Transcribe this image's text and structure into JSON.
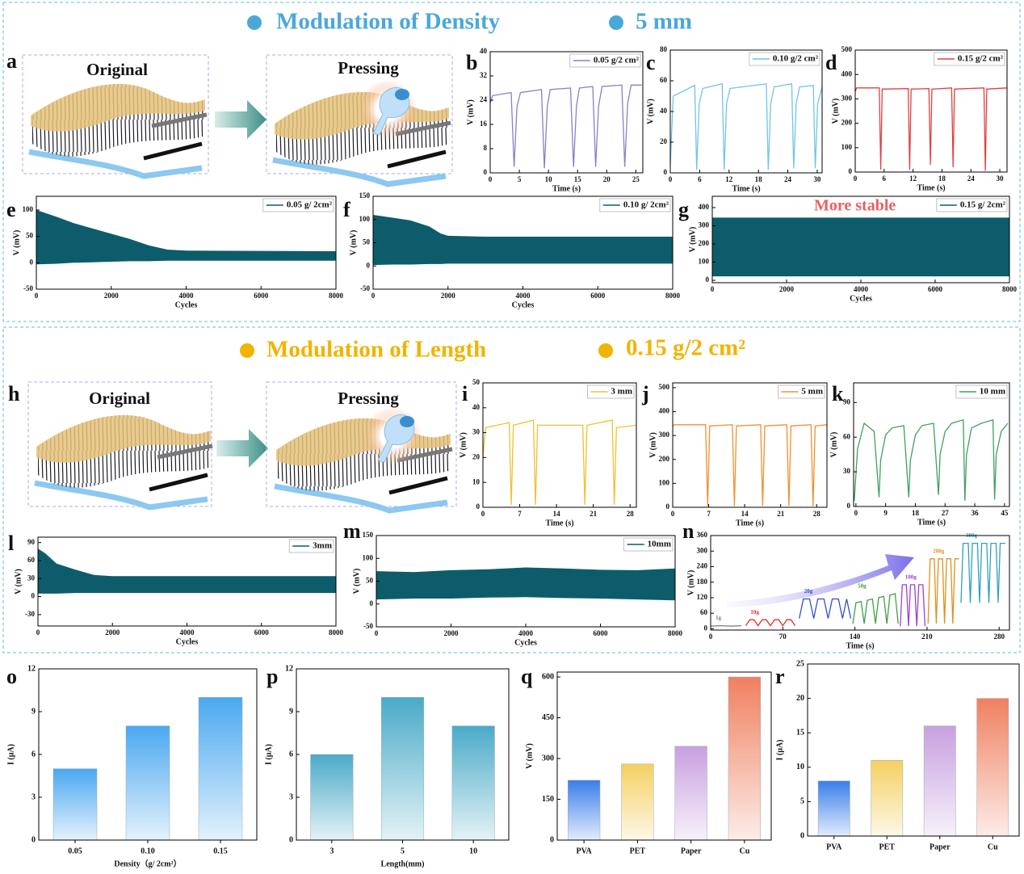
{
  "sections": [
    {
      "title": "Modulation of Density",
      "condition": "5 mm"
    },
    {
      "title": "Modulation of Length",
      "condition": "0.15 g/2 cm²"
    }
  ],
  "illustrations": [
    {
      "left": "Original",
      "right": "Pressing"
    },
    {
      "left": "Original",
      "right": "Pressing"
    }
  ],
  "panel_labels": [
    "a",
    "b",
    "c",
    "d",
    "e",
    "f",
    "g",
    "h",
    "i",
    "j",
    "k",
    "l",
    "m",
    "n",
    "o",
    "p",
    "q",
    "r"
  ],
  "chart_data": [
    {
      "type": "line",
      "xlabel": "Time (s)",
      "ylabel": "V (mV)",
      "xlim": [
        0,
        26.2
      ],
      "ylim": [
        0,
        40
      ],
      "xticks": [
        0,
        5,
        10,
        15,
        20,
        25
      ],
      "yticks": [
        0,
        8,
        16,
        24,
        32,
        40
      ],
      "legend": "upper right",
      "x": [
        0,
        0.4,
        3.6,
        4.1,
        4.6,
        5.2,
        8.8,
        9.3,
        9.8,
        10.3,
        13.8,
        14.3,
        14.8,
        15.3,
        17.6,
        18.1,
        18.6,
        19.2,
        22.6,
        23.1,
        23.6,
        24.2,
        26
      ],
      "series": [
        {
          "name": "0.05 g/2 cm²",
          "color": "#8a7fc8",
          "values": [
            23,
            25.5,
            26.5,
            2,
            22,
            26.5,
            27.5,
            1.5,
            22,
            27.5,
            28,
            2,
            22,
            28,
            28.5,
            2,
            22,
            28.5,
            29,
            2,
            23,
            29,
            29
          ]
        }
      ]
    },
    {
      "type": "line",
      "xlabel": "Time (s)",
      "ylabel": "V (mV)",
      "xlim": [
        0,
        31
      ],
      "ylim": [
        0,
        80
      ],
      "xticks": [
        0,
        6,
        12,
        18,
        24,
        30
      ],
      "yticks": [
        0,
        20,
        40,
        60,
        80
      ],
      "legend": "upper right",
      "x": [
        0,
        0.6,
        5,
        5.4,
        5.9,
        6.6,
        10.6,
        11,
        11.5,
        12.2,
        19.6,
        20,
        20.5,
        21.2,
        24.8,
        25.2,
        25.7,
        26.4,
        29.2,
        29.6,
        30.1,
        31
      ],
      "series": [
        {
          "name": "0.10 g/2 cm²",
          "color": "#72c4e6",
          "values": [
            5,
            50,
            57,
            2,
            45,
            55,
            58,
            2,
            45,
            55,
            58,
            2,
            45,
            56,
            58,
            3,
            45,
            56,
            57,
            3,
            45,
            56
          ]
        }
      ]
    },
    {
      "type": "line",
      "xlabel": "Time (s)",
      "ylabel": "V (mV)",
      "xlim": [
        0,
        31.5
      ],
      "ylim": [
        0,
        500
      ],
      "xticks": [
        0,
        6,
        12,
        18,
        24,
        30
      ],
      "yticks": [
        0,
        100,
        200,
        300,
        400,
        500
      ],
      "legend": "upper right",
      "x": [
        0,
        0.3,
        5,
        5.3,
        5.6,
        11,
        11.3,
        11.6,
        15.3,
        15.6,
        15.9,
        20,
        20.3,
        20.6,
        26.7,
        27,
        27.3,
        31.5
      ],
      "series": [
        {
          "name": "0.15 g/2 cm²",
          "color": "#e04040",
          "values": [
            330,
            345,
            345,
            10,
            340,
            342,
            10,
            340,
            342,
            30,
            340,
            345,
            20,
            340,
            345,
            5,
            340,
            345
          ]
        }
      ]
    },
    {
      "type": "band",
      "xlabel": "Cycles",
      "ylabel": "V (mV)",
      "xlim": [
        0,
        8000
      ],
      "ylim": [
        -50,
        126
      ],
      "xticks": [
        0,
        2000,
        4000,
        6000,
        8000
      ],
      "yticks": [
        -50,
        0,
        50,
        100
      ],
      "legend": "upper right",
      "x": [
        0,
        500,
        1000,
        1500,
        2000,
        2500,
        3000,
        3500,
        4000,
        8000
      ],
      "series": [
        {
          "name": "0.05 g/ 2cm²",
          "color": "#0d5c6b",
          "upper": [
            100,
            88,
            75,
            65,
            55,
            45,
            33,
            25,
            23,
            22
          ],
          "lower": [
            -3,
            -2,
            0,
            1,
            2,
            3,
            3,
            4,
            4,
            4
          ]
        }
      ]
    },
    {
      "type": "band",
      "xlabel": "Cycles",
      "ylabel": "V (mV)",
      "xlim": [
        0,
        8000
      ],
      "ylim": [
        -50,
        150
      ],
      "xticks": [
        0,
        2000,
        4000,
        6000,
        8000
      ],
      "yticks": [
        -50,
        0,
        50,
        100,
        150
      ],
      "legend": "upper right",
      "x": [
        0,
        500,
        1000,
        1500,
        1800,
        2000,
        3000,
        8000
      ],
      "series": [
        {
          "name": "0.10 g/ 2cm²",
          "color": "#0d5c6b",
          "upper": [
            110,
            104,
            98,
            85,
            70,
            65,
            63,
            63
          ],
          "lower": [
            2,
            3,
            3,
            4,
            4,
            5,
            5,
            5
          ]
        }
      ]
    },
    {
      "type": "band",
      "xlabel": "Cycles",
      "ylabel": "V (mV)",
      "xlim": [
        0,
        8000
      ],
      "ylim": [
        -13,
        462
      ],
      "xticks": [
        0,
        2000,
        4000,
        6000,
        8000
      ],
      "yticks": [
        0,
        100,
        200,
        300,
        400
      ],
      "legend": "upper right",
      "annotation": "More stable",
      "x": [
        0,
        8000
      ],
      "series": [
        {
          "name": "0.15 g/ 2cm²",
          "color": "#0d5c6b",
          "upper": [
            345,
            345
          ],
          "lower": [
            22,
            22
          ]
        }
      ]
    },
    {
      "type": "line",
      "xlabel": "Time (s)",
      "ylabel": "V (mV)",
      "xlim": [
        0,
        29.2
      ],
      "ylim": [
        0,
        50
      ],
      "xticks": [
        0,
        7,
        14,
        21,
        28
      ],
      "yticks": [
        0,
        10,
        20,
        30,
        40,
        50
      ],
      "legend": "upper right",
      "x": [
        0,
        0.5,
        5,
        5.4,
        5.8,
        9.6,
        10,
        10.4,
        19,
        19.4,
        19.8,
        24.6,
        25,
        25.4,
        29.2
      ],
      "series": [
        {
          "name": "3 mm",
          "color": "#f0c030",
          "values": [
            20,
            32,
            34,
            1,
            33,
            35,
            1,
            33,
            33,
            1,
            33,
            35,
            1,
            32,
            33
          ]
        }
      ]
    },
    {
      "type": "line",
      "xlabel": "Time (s)",
      "ylabel": "V (mV)",
      "xlim": [
        0,
        30
      ],
      "ylim": [
        0,
        520
      ],
      "xticks": [
        0,
        7,
        14,
        21,
        28
      ],
      "yticks": [
        0,
        100,
        200,
        300,
        400,
        500
      ],
      "legend": "upper right",
      "x": [
        0,
        0.3,
        6.4,
        6.8,
        7.2,
        11.6,
        12,
        12.4,
        17.1,
        17.5,
        17.9,
        22.2,
        22.6,
        23,
        26.9,
        27.3,
        27.7,
        30
      ],
      "series": [
        {
          "name": "5 mm",
          "color": "#f09030",
          "values": [
            340,
            345,
            345,
            5,
            340,
            345,
            5,
            340,
            345,
            5,
            340,
            345,
            5,
            340,
            345,
            5,
            340,
            345
          ]
        }
      ]
    },
    {
      "type": "line",
      "xlabel": "Time (s)",
      "ylabel": "V (mV)",
      "xlim": [
        -0.7,
        46.5
      ],
      "ylim": [
        0,
        107
      ],
      "xticks": [
        0,
        9,
        18,
        27,
        36,
        45
      ],
      "yticks": [
        0,
        30,
        60,
        90
      ],
      "legend": "upper right",
      "x": [
        -0.5,
        0.5,
        2.5,
        5.5,
        7,
        7.5,
        9,
        11,
        14.5,
        16,
        16.5,
        18,
        20,
        23.5,
        25,
        25.5,
        27,
        29,
        32.5,
        33,
        33.5,
        35,
        38,
        41.5,
        42,
        42.5,
        44,
        46
      ],
      "series": [
        {
          "name": "10 mm",
          "color": "#40a060",
          "values": [
            5,
            50,
            72,
            65,
            8,
            40,
            62,
            68,
            70,
            8,
            40,
            62,
            70,
            72,
            10,
            45,
            65,
            72,
            75,
            5,
            45,
            68,
            72,
            75,
            6,
            45,
            65,
            72
          ]
        }
      ]
    },
    {
      "type": "band",
      "xlabel": "Cycles",
      "ylabel": "V (mV)",
      "xlim": [
        0,
        8000
      ],
      "ylim": [
        -49,
        99
      ],
      "xticks": [
        0,
        2000,
        4000,
        6000,
        8000
      ],
      "yticks": [
        -30,
        0,
        30,
        60,
        90
      ],
      "legend": "upper right",
      "x": [
        0,
        200,
        500,
        1000,
        1500,
        2000,
        8000
      ],
      "series": [
        {
          "name": "3mm",
          "color": "#0d5c6b",
          "upper": [
            80,
            72,
            55,
            45,
            36,
            34,
            34
          ],
          "lower": [
            5,
            5,
            5,
            6,
            6,
            6,
            6
          ]
        }
      ]
    },
    {
      "type": "band",
      "xlabel": "Cycles",
      "ylabel": "V (mV)",
      "xlim": [
        0,
        8000
      ],
      "ylim": [
        -50,
        150
      ],
      "xticks": [
        0,
        2000,
        4000,
        6000,
        8000
      ],
      "yticks": [
        -50,
        0,
        50,
        100,
        150
      ],
      "legend": "upper right",
      "x": [
        0,
        1000,
        2000,
        3000,
        4000,
        5000,
        6000,
        7000,
        8000
      ],
      "series": [
        {
          "name": "10mm",
          "color": "#0d5c6b",
          "upper": [
            72,
            70,
            74,
            76,
            80,
            78,
            75,
            74,
            78
          ],
          "lower": [
            10,
            12,
            12,
            14,
            15,
            13,
            12,
            10,
            8
          ]
        }
      ]
    },
    {
      "type": "line",
      "xlabel": "Time (s)",
      "ylabel": "V (mV)",
      "xlim": [
        0,
        290
      ],
      "ylim": [
        -5,
        360
      ],
      "xticks": [
        0,
        70,
        140,
        210,
        280
      ],
      "yticks": [
        0,
        60,
        120,
        180,
        240,
        300,
        360
      ],
      "series": [
        {
          "name": "1g",
          "color": "#808080",
          "x": [
            0,
            10,
            20,
            30
          ],
          "values": [
            10,
            12,
            10,
            12
          ]
        },
        {
          "name": "10g",
          "color": "#e03030",
          "x": [
            34,
            38,
            42,
            46,
            50,
            54,
            58,
            62,
            66,
            70,
            74,
            78,
            82
          ],
          "values": [
            12,
            35,
            35,
            12,
            35,
            35,
            12,
            35,
            35,
            12,
            35,
            35,
            12
          ]
        },
        {
          "name": "20g",
          "color": "#3050d0",
          "x": [
            86,
            90,
            96,
            100,
            104,
            110,
            114,
            118,
            124,
            128,
            132,
            136
          ],
          "values": [
            40,
            115,
            115,
            40,
            115,
            115,
            40,
            115,
            115,
            40,
            115,
            40
          ]
        },
        {
          "name": "50g",
          "color": "#40a040",
          "x": [
            138,
            141,
            146,
            149,
            152,
            157,
            160,
            163,
            168,
            171,
            174,
            179,
            182
          ],
          "values": [
            20,
            100,
            105,
            20,
            110,
            115,
            20,
            120,
            125,
            20,
            130,
            135,
            20
          ]
        },
        {
          "name": "100g",
          "color": "#a040d0",
          "x": [
            184,
            186,
            190,
            192,
            194,
            198,
            200,
            202,
            206,
            208
          ],
          "values": [
            10,
            170,
            170,
            10,
            170,
            170,
            10,
            170,
            170,
            10
          ]
        },
        {
          "name": "200g",
          "color": "#e09020",
          "x": [
            211,
            213,
            217,
            219,
            221,
            225,
            227,
            229,
            233,
            235,
            237,
            241
          ],
          "values": [
            20,
            270,
            270,
            20,
            270,
            270,
            20,
            270,
            270,
            20,
            270,
            270
          ]
        },
        {
          "name": "300g",
          "color": "#30a0c0",
          "x": [
            243,
            245,
            250,
            252,
            254,
            259,
            261,
            263,
            268,
            270,
            272,
            277,
            279,
            281,
            286
          ],
          "values": [
            100,
            330,
            330,
            100,
            330,
            330,
            100,
            330,
            330,
            100,
            330,
            330,
            100,
            330,
            330
          ]
        }
      ]
    },
    {
      "type": "bar",
      "xlabel": "Density（g/ 2cm²）",
      "ylabel": "I (μA)",
      "ylim": [
        0,
        12
      ],
      "yticks": [
        0,
        3,
        6,
        9,
        12
      ],
      "categories": [
        "0.05",
        "0.10",
        "0.15"
      ],
      "values": [
        5,
        8,
        10
      ],
      "colors": [
        "#4aa8f0",
        "#4aa8f0",
        "#4aa8f0"
      ]
    },
    {
      "type": "bar",
      "xlabel": "Length(mm)",
      "ylabel": "I (μA)",
      "ylim": [
        0,
        12
      ],
      "yticks": [
        0,
        3,
        6,
        9,
        12
      ],
      "categories": [
        "3",
        "5",
        "10"
      ],
      "values": [
        6,
        10,
        8
      ],
      "colors": [
        "#4aaac8",
        "#4aaac8",
        "#4aaac8"
      ]
    },
    {
      "type": "bar",
      "ylabel": "V (mV)",
      "ylim": [
        0,
        618
      ],
      "yticks": [
        0,
        150,
        300,
        450,
        600
      ],
      "categories": [
        "PVA",
        "PET",
        "Paper",
        "Cu"
      ],
      "values": [
        220,
        280,
        345,
        600
      ],
      "colors": [
        "#3a7ee8",
        "#f5d060",
        "#c8a0e0",
        "#f08060"
      ]
    },
    {
      "type": "bar",
      "ylabel": "I (μA)",
      "ylim": [
        0,
        25
      ],
      "yticks": [
        0,
        5,
        10,
        15,
        20,
        25
      ],
      "categories": [
        "PVA",
        "PET",
        "Paper",
        "Cu"
      ],
      "values": [
        8,
        11,
        16,
        20
      ],
      "colors": [
        "#3a7ee8",
        "#f5d060",
        "#c8a0e0",
        "#f08060"
      ]
    }
  ]
}
